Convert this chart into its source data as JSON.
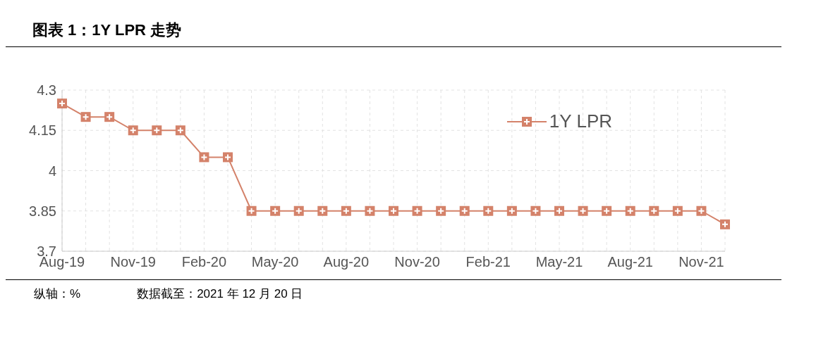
{
  "chart_data": {
    "type": "line",
    "title": "图表 1：1Y LPR 走势",
    "categories": [
      "Aug-19",
      null,
      null,
      "Nov-19",
      null,
      null,
      "Feb-20",
      null,
      null,
      "May-20",
      null,
      null,
      "Aug-20",
      null,
      null,
      "Nov-20",
      null,
      null,
      "Feb-21",
      null,
      null,
      "May-21",
      null,
      null,
      "Aug-21",
      null,
      null,
      "Nov-21",
      null
    ],
    "series": [
      {
        "name": "1Y LPR",
        "color": "#d4826a",
        "values": [
          4.25,
          4.2,
          4.2,
          4.15,
          4.15,
          4.15,
          4.05,
          4.05,
          3.85,
          3.85,
          3.85,
          3.85,
          3.85,
          3.85,
          3.85,
          3.85,
          3.85,
          3.85,
          3.85,
          3.85,
          3.85,
          3.85,
          3.85,
          3.85,
          3.85,
          3.85,
          3.85,
          3.85,
          3.8
        ]
      }
    ],
    "ylim": [
      3.7,
      4.3
    ],
    "yticks": [
      3.7,
      3.85,
      4,
      4.15,
      4.3
    ],
    "grid": true,
    "legend": "top right",
    "marker": "square",
    "line_style": "solid",
    "annotations": [
      "纵轴：%",
      "数据截至：2021 年 12 月 20 日"
    ]
  }
}
